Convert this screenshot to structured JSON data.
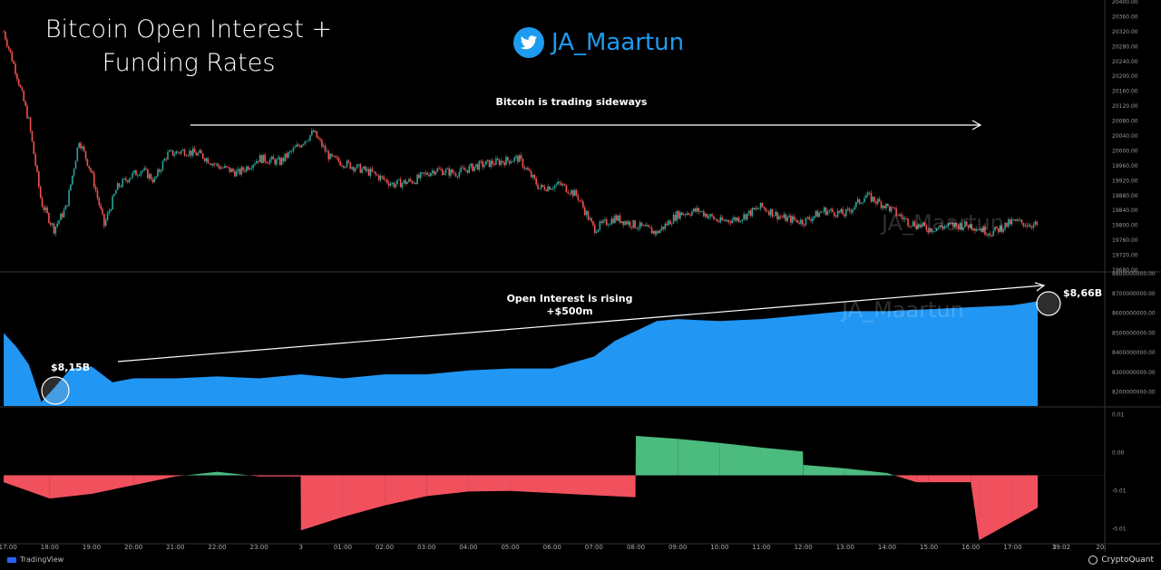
{
  "header": {
    "title_line1": "Bitcoin Open Interest +",
    "title_line2": "Funding Rates",
    "handle": "JA_Maartun"
  },
  "annotations": {
    "price_note": "Bitcoin is trading sideways",
    "oi_note_line1": "Open Interest is rising",
    "oi_note_line2": "+$500m",
    "oi_start": "$8,15B",
    "oi_end": "$8,66B",
    "watermark": "JA_Maartun"
  },
  "footer": {
    "left": "TradingView",
    "right": "CryptoQuant"
  },
  "colors": {
    "oi": "#2196f3",
    "funding_pos": "#4cbb7e",
    "funding_neg": "#f0515d",
    "up": "#26a69a",
    "down": "#ef5350"
  },
  "x_ticks": [
    "17:00",
    "18:00",
    "19:00",
    "20:00",
    "21:00",
    "22:00",
    "23:00",
    "3",
    "01:00",
    "02:00",
    "03:00",
    "04:00",
    "05:00",
    "06:00",
    "07:00",
    "08:00",
    "09:00",
    "10:00",
    "11:00",
    "12:00",
    "13:00",
    "14:00",
    "15:00",
    "16:00",
    "17:00",
    "3",
    "19:02",
    "20:"
  ],
  "chart_data": [
    {
      "type": "candlestick",
      "name": "price",
      "y_ticks": [
        "20400.00",
        "20360.00",
        "20320.00",
        "20280.00",
        "20240.00",
        "20200.00",
        "20160.00",
        "20120.00",
        "20080.00",
        "20040.00",
        "20000.00",
        "19960.00",
        "19920.00",
        "19880.00",
        "19840.00",
        "19800.00",
        "19760.00",
        "19720.00",
        "19680.00"
      ],
      "ylim": [
        19680,
        20400
      ],
      "x_hours": [
        16.9,
        17.2,
        17.5,
        17.8,
        18.1,
        18.4,
        18.7,
        19.0,
        19.3,
        19.6,
        19.9,
        20.2,
        20.5,
        20.8,
        21.2,
        21.6,
        22.0,
        22.5,
        23.0,
        23.5,
        24.0,
        24.3,
        24.7,
        25.2,
        25.7,
        26.2,
        26.7,
        27.2,
        27.7,
        28.2,
        28.7,
        29.2,
        29.7,
        30.2,
        30.6,
        31.0,
        31.5,
        32.0,
        32.5,
        33.0,
        33.5,
        34.0,
        34.5,
        35.0,
        35.5,
        36.0,
        36.5,
        37.0,
        37.5,
        38.0,
        38.5,
        39.0,
        39.5,
        40.0,
        40.5,
        41.0,
        41.6
      ],
      "close": [
        20320,
        20210,
        20080,
        19860,
        19790,
        19850,
        20030,
        19940,
        19800,
        19900,
        19930,
        19950,
        19920,
        19990,
        20000,
        19990,
        19960,
        19940,
        19980,
        19970,
        20020,
        20050,
        19980,
        19960,
        19940,
        19910,
        19920,
        19950,
        19940,
        19960,
        19970,
        19980,
        19900,
        19910,
        19880,
        19790,
        19820,
        19800,
        19780,
        19830,
        19840,
        19810,
        19820,
        19850,
        19820,
        19810,
        19840,
        19830,
        19880,
        19850,
        19810,
        19790,
        19800,
        19800,
        19780,
        19810,
        19800
      ]
    },
    {
      "type": "area",
      "name": "open_interest",
      "y_ticks": [
        "8800000000.00",
        "8700000000.00",
        "8600000000.00",
        "8500000000.00",
        "8400000000.00",
        "8300000000.00",
        "8200000000.00"
      ],
      "ylim": [
        8130000000,
        8800000000
      ],
      "x_hours": [
        16.9,
        17.2,
        17.5,
        17.8,
        18.1,
        18.5,
        19.0,
        19.5,
        20.0,
        21.0,
        22.0,
        23.0,
        24.0,
        25.0,
        26.0,
        27.0,
        28.0,
        29.0,
        30.0,
        31.0,
        31.5,
        32.0,
        32.5,
        33.0,
        34.0,
        35.0,
        36.0,
        37.0,
        38.0,
        39.0,
        40.0,
        41.0,
        41.6
      ],
      "values": [
        8500000000,
        8430000000,
        8340000000,
        8150000000,
        8220000000,
        8320000000,
        8330000000,
        8250000000,
        8270000000,
        8270000000,
        8280000000,
        8270000000,
        8290000000,
        8270000000,
        8290000000,
        8290000000,
        8310000000,
        8320000000,
        8320000000,
        8380000000,
        8460000000,
        8510000000,
        8560000000,
        8570000000,
        8560000000,
        8570000000,
        8590000000,
        8610000000,
        8610000000,
        8620000000,
        8630000000,
        8640000000,
        8660000000
      ]
    },
    {
      "type": "area",
      "name": "funding_rate",
      "y_ticks": [
        "0.01",
        "0.00",
        "-0.01",
        "-0.01"
      ],
      "ylim": [
        -0.0115,
        0.0115
      ],
      "x_hours": [
        16.9,
        18.0,
        19.0,
        20.0,
        21.0,
        22.0,
        23.0,
        23.99,
        24.0,
        25.0,
        26.0,
        27.0,
        28.0,
        29.0,
        31.99,
        32.0,
        33.0,
        34.0,
        35.0,
        35.99,
        36.0,
        37.0,
        38.0,
        38.7,
        38.99,
        40.0,
        40.2,
        41.0,
        41.6
      ],
      "values": [
        -0.0012,
        -0.004,
        -0.0032,
        -0.0017,
        -0.0002,
        0.0006,
        -0.0002,
        -0.0002,
        -0.0095,
        -0.0072,
        -0.0052,
        -0.0036,
        -0.0028,
        -0.0027,
        -0.0038,
        0.0068,
        0.0063,
        0.0056,
        0.0048,
        0.0041,
        0.0018,
        0.0012,
        0.0004,
        -0.0012,
        -0.0012,
        -0.0012,
        -0.0112,
        -0.008,
        -0.0056
      ]
    }
  ]
}
